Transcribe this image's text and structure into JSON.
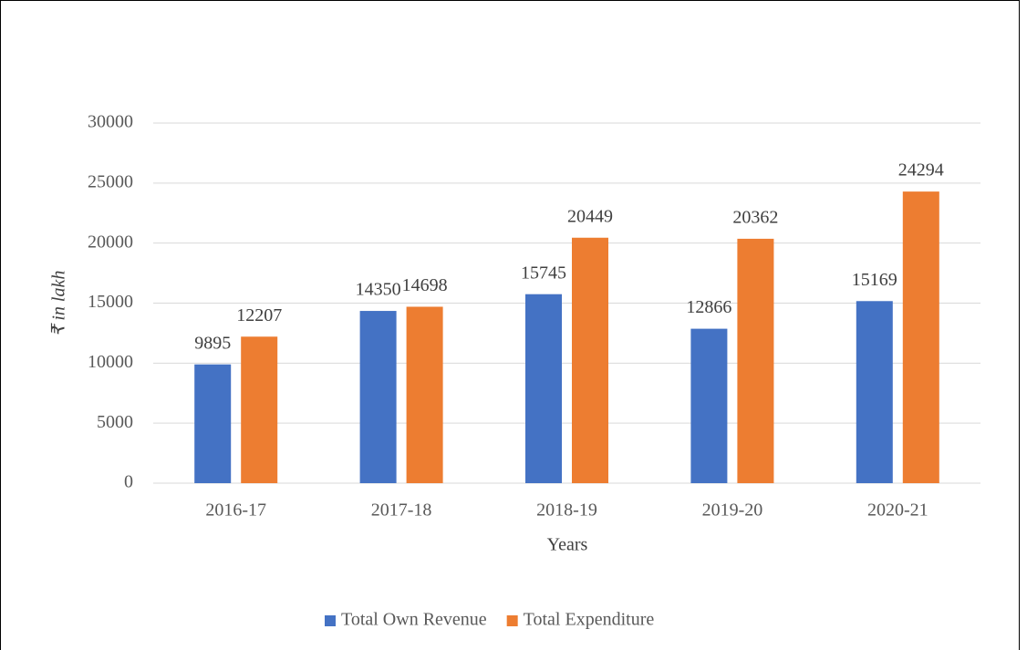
{
  "chart_data": {
    "type": "bar",
    "x_label": "Years",
    "y_label": "₹ in lakh",
    "categories": [
      "2016-17",
      "2017-18",
      "2018-19",
      "2019-20",
      "2020-21"
    ],
    "series": [
      {
        "name": "Total Own Revenue",
        "color": "#4472c4",
        "values": [
          9895,
          14350,
          15745,
          12866,
          15169
        ]
      },
      {
        "name": "Total Expenditure",
        "color": "#ed7d31",
        "values": [
          12207,
          14698,
          20449,
          20362,
          24294
        ]
      }
    ],
    "ylim": [
      0,
      30000
    ],
    "yticks": [
      0,
      5000,
      10000,
      15000,
      20000,
      25000,
      30000
    ],
    "grid": true,
    "legend": "bottom"
  }
}
